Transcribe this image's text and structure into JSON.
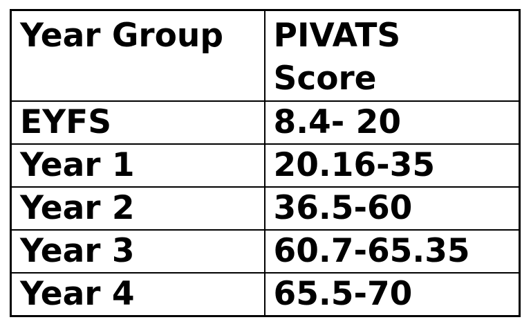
{
  "table": {
    "columns": [
      {
        "key": "year_group",
        "label": "Year Group"
      },
      {
        "key": "pivats_score",
        "label": "PIVATS\nScore"
      }
    ],
    "rows": [
      {
        "year_group": "EYFS",
        "pivats_score": "8.4- 20"
      },
      {
        "year_group": "Year 1",
        "pivats_score": "20.16-35"
      },
      {
        "year_group": "Year 2",
        "pivats_score": "36.5-60"
      },
      {
        "year_group": "Year 3",
        "pivats_score": "60.7-65.35"
      },
      {
        "year_group": "Year 4",
        "pivats_score": "65.5-70"
      }
    ],
    "colors": {
      "text": "#000000",
      "border": "#000000",
      "background": "#ffffff"
    }
  }
}
